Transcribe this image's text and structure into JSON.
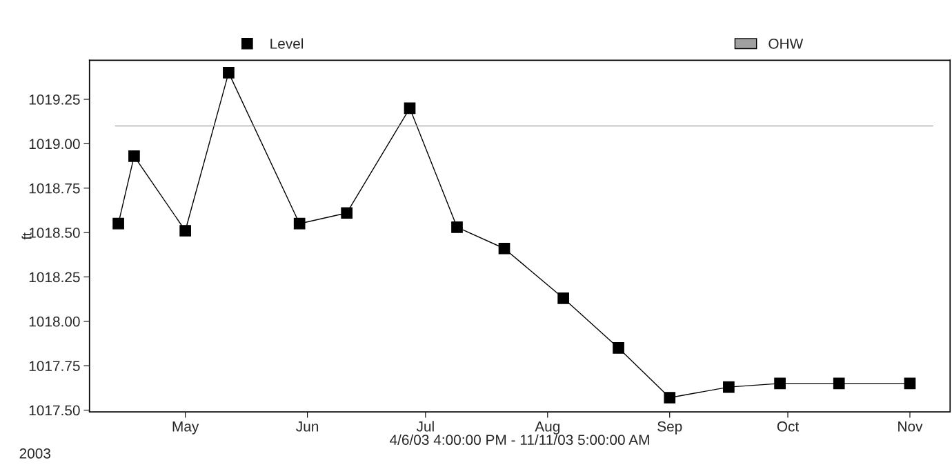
{
  "chart_data": {
    "type": "line",
    "xlabel": "4/6/03 4:00:00 PM - 11/11/03 5:00:00 AM",
    "ylabel": "ft",
    "annotations": [
      "2003"
    ],
    "x": [
      "2003-04-14",
      "2003-04-18",
      "2003-05-01",
      "2003-05-12",
      "2003-05-30",
      "2003-06-11",
      "2003-06-27",
      "2003-07-09",
      "2003-07-21",
      "2003-08-05",
      "2003-08-19",
      "2003-09-01",
      "2003-09-16",
      "2003-09-29",
      "2003-10-14",
      "2003-11-01"
    ],
    "series": [
      {
        "name": "Level",
        "color": "#000000",
        "values": [
          1018.55,
          1018.93,
          1018.51,
          1019.4,
          1018.55,
          1018.61,
          1019.2,
          1018.53,
          1018.41,
          1018.13,
          1017.85,
          1017.57,
          1017.63,
          1017.65,
          1017.65,
          1017.65
        ]
      }
    ],
    "ref_lines": [
      {
        "axis": "y",
        "value": 1019.1,
        "label": "OHW",
        "color": "#a0a0a0"
      }
    ],
    "xlim": [
      "2003-04-06T16:00",
      "2003-11-11T05:00"
    ],
    "xticks": [
      {
        "value": "2003-05-01",
        "label": "May"
      },
      {
        "value": "2003-06-01",
        "label": "Jun"
      },
      {
        "value": "2003-07-01",
        "label": "Jul"
      },
      {
        "value": "2003-08-01",
        "label": "Aug"
      },
      {
        "value": "2003-09-01",
        "label": "Sep"
      },
      {
        "value": "2003-10-01",
        "label": "Oct"
      },
      {
        "value": "2003-11-01",
        "label": "Nov"
      }
    ],
    "ylim": [
      1017.49,
      1019.47
    ],
    "yticks": [
      {
        "value": 1017.5,
        "label": "1017.50"
      },
      {
        "value": 1017.75,
        "label": "1017.75"
      },
      {
        "value": 1018.0,
        "label": "1018.00"
      },
      {
        "value": 1018.25,
        "label": "1018.25"
      },
      {
        "value": 1018.5,
        "label": "1018.50"
      },
      {
        "value": 1018.75,
        "label": "1018.75"
      },
      {
        "value": 1019.0,
        "label": "1019.00"
      },
      {
        "value": 1019.25,
        "label": "1019.25"
      }
    ],
    "grid": false,
    "legend": "top",
    "marker": "square",
    "line_style": "solid"
  }
}
